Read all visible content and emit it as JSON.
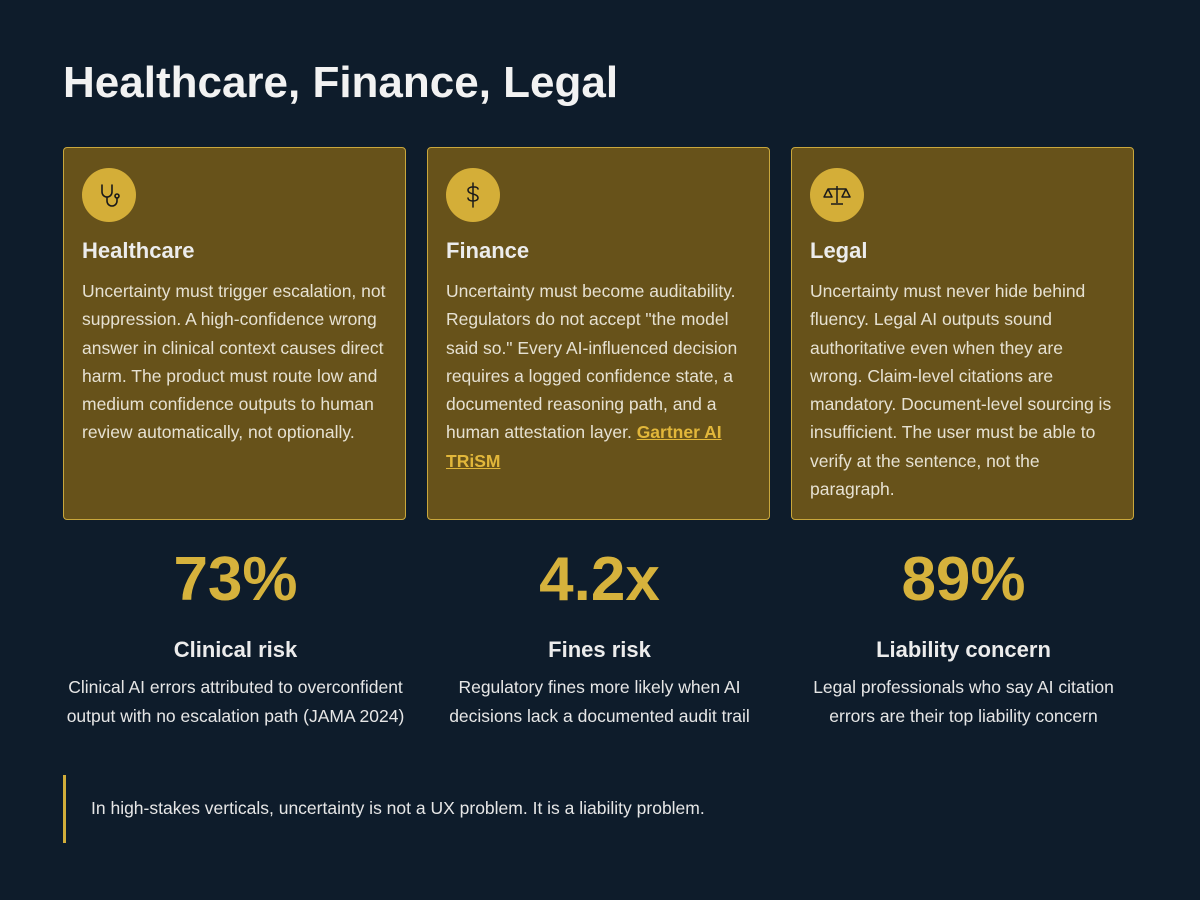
{
  "header": {
    "title": "Healthcare, Finance, Legal"
  },
  "cards": [
    {
      "title": "Healthcare",
      "body": "Uncertainty must trigger escalation, not suppression. A high-confidence wrong answer in clinical context causes direct harm. The product must route low and medium confidence outputs to human review automatically, not optionally."
    },
    {
      "title": "Finance",
      "body": "Uncertainty must become auditability. Regulators do not accept \"the model said so.\" Every AI-influenced decision requires a logged confidence state, a documented reasoning path, and a human attestation layer.",
      "link": "Gartner AI TRiSM"
    },
    {
      "title": "Legal",
      "body": "Uncertainty must never hide behind fluency. Legal AI outputs sound authoritative even when they are wrong. Claim-level citations are mandatory. Document-level sourcing is insufficient. The user must be able to verify at the sentence, not the paragraph."
    }
  ],
  "stats": [
    {
      "value": "73%",
      "label": "Clinical risk",
      "description": "Clinical AI errors attributed to overconfident output with no escalation path (JAMA 2024)"
    },
    {
      "value": "4.2x",
      "label": "Fines risk",
      "description": "Regulatory fines more likely when AI decisions lack a documented audit trail"
    },
    {
      "value": "89%",
      "label": "Liability concern",
      "description": "Legal professionals who say AI citation errors are their top liability concern"
    }
  ],
  "quote": "In high-stakes verticals, uncertainty is not a UX problem. It is a liability problem."
}
